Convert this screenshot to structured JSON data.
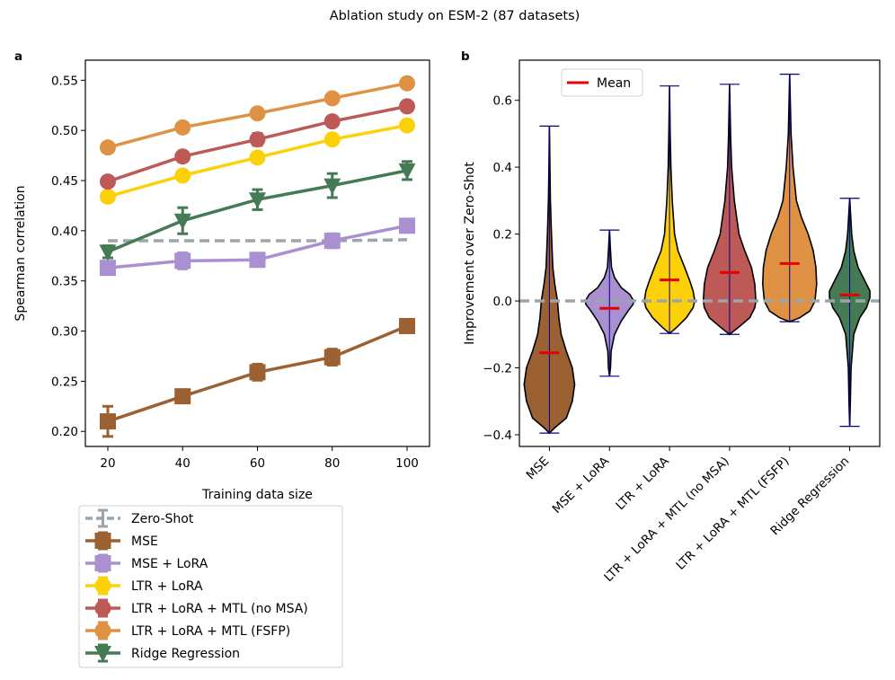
{
  "suptitle": "Ablation study on ESM-2 (87 datasets)",
  "colors": {
    "Zero-Shot": "#9aa5ae",
    "MSE": "#9b6133",
    "MSE + LoRA": "#aa90d0",
    "LTR + LoRA": "#fdd10a",
    "LTR + LoRA + MTL (no MSA)": "#bd5a57",
    "LTR + LoRA + MTL (FSFP)": "#df9244",
    "Ridge Regression": "#447b55",
    "mean": "#e60000",
    "violin_line": "#00008b"
  },
  "chart_data": [
    {
      "panel": "a",
      "type": "line",
      "xlabel": "Training data size",
      "ylabel": "Spearman correlation",
      "x": [
        20,
        40,
        60,
        80,
        100
      ],
      "xlim": [
        14,
        106
      ],
      "ylim": [
        0.185,
        0.57
      ],
      "xticks": [
        20,
        40,
        60,
        80,
        100
      ],
      "yticks": [
        0.2,
        0.25,
        0.3,
        0.35,
        0.4,
        0.45,
        0.5,
        0.55
      ],
      "ytick_labels": [
        "0.20",
        "0.25",
        "0.30",
        "0.35",
        "0.40",
        "0.45",
        "0.50",
        "0.55"
      ],
      "legend_location": "below",
      "series": [
        {
          "name": "Zero-Shot",
          "marker": "none",
          "dashed": true,
          "values": [
            0.39,
            0.39,
            0.39,
            0.39,
            0.391
          ],
          "err": [
            0,
            0,
            0,
            0,
            0
          ]
        },
        {
          "name": "MSE",
          "marker": "square",
          "values": [
            0.21,
            0.235,
            0.259,
            0.274,
            0.305
          ],
          "err": [
            0.015,
            0.005,
            0.008,
            0.008,
            0.005
          ]
        },
        {
          "name": "MSE + LoRA",
          "marker": "square",
          "values": [
            0.363,
            0.37,
            0.371,
            0.39,
            0.405
          ],
          "err": [
            0.006,
            0.008,
            0.006,
            0.007,
            0.006
          ]
        },
        {
          "name": "LTR + LoRA",
          "marker": "circle",
          "values": [
            0.434,
            0.455,
            0.473,
            0.491,
            0.505
          ],
          "err": [
            0.004,
            0.004,
            0.004,
            0.003,
            0.003
          ]
        },
        {
          "name": "LTR + LoRA + MTL (no MSA)",
          "marker": "circle",
          "values": [
            0.449,
            0.474,
            0.491,
            0.509,
            0.524
          ],
          "err": [
            0.004,
            0.004,
            0.006,
            0.004,
            0.003
          ]
        },
        {
          "name": "LTR + LoRA + MTL (FSFP)",
          "marker": "circle",
          "values": [
            0.483,
            0.503,
            0.517,
            0.532,
            0.547
          ],
          "err": [
            0.003,
            0.004,
            0.003,
            0.003,
            0.003
          ]
        },
        {
          "name": "Ridge Regression",
          "marker": "triangle-down",
          "values": [
            0.379,
            0.41,
            0.431,
            0.445,
            0.46
          ],
          "err": [
            0.006,
            0.013,
            0.01,
            0.012,
            0.009
          ]
        }
      ]
    },
    {
      "panel": "b",
      "type": "violin",
      "ylabel": "Improvement over Zero-Shot",
      "ylim": [
        -0.435,
        0.72
      ],
      "yticks": [
        -0.4,
        -0.2,
        0.0,
        0.2,
        0.4,
        0.6
      ],
      "ytick_labels": [
        "−0.4",
        "−0.2",
        "0.0",
        "0.2",
        "0.4",
        "0.6"
      ],
      "zero_line": 0.0,
      "legend_entry": "Mean",
      "legend_location": "top-left",
      "violins": [
        {
          "name": "MSE",
          "min": -0.395,
          "max": 0.523,
          "mean": -0.155,
          "profile": [
            [
              -0.395,
              0.0
            ],
            [
              -0.38,
              0.015
            ],
            [
              -0.35,
              0.05
            ],
            [
              -0.3,
              0.068
            ],
            [
              -0.25,
              0.075
            ],
            [
              -0.2,
              0.068
            ],
            [
              -0.15,
              0.05
            ],
            [
              -0.1,
              0.035
            ],
            [
              -0.05,
              0.028
            ],
            [
              0.0,
              0.024
            ],
            [
              0.05,
              0.016
            ],
            [
              0.1,
              0.01
            ],
            [
              0.2,
              0.006
            ],
            [
              0.3,
              0.003
            ],
            [
              0.4,
              0.0015
            ],
            [
              0.523,
              0.0
            ]
          ]
        },
        {
          "name": "MSE + LoRA",
          "min": -0.225,
          "max": 0.212,
          "mean": -0.022,
          "profile": [
            [
              -0.225,
              0.0
            ],
            [
              -0.2,
              0.003
            ],
            [
              -0.15,
              0.005
            ],
            [
              -0.1,
              0.015
            ],
            [
              -0.06,
              0.035
            ],
            [
              -0.03,
              0.055
            ],
            [
              -0.01,
              0.07
            ],
            [
              0.0,
              0.072
            ],
            [
              0.02,
              0.06
            ],
            [
              0.04,
              0.035
            ],
            [
              0.07,
              0.015
            ],
            [
              0.1,
              0.006
            ],
            [
              0.15,
              0.003
            ],
            [
              0.212,
              0.0
            ]
          ]
        },
        {
          "name": "LTR + LoRA",
          "min": -0.097,
          "max": 0.643,
          "mean": 0.063,
          "profile": [
            [
              -0.097,
              0.0
            ],
            [
              -0.08,
              0.02
            ],
            [
              -0.05,
              0.05
            ],
            [
              -0.02,
              0.07
            ],
            [
              0.0,
              0.075
            ],
            [
              0.03,
              0.07
            ],
            [
              0.06,
              0.06
            ],
            [
              0.1,
              0.045
            ],
            [
              0.15,
              0.025
            ],
            [
              0.2,
              0.015
            ],
            [
              0.3,
              0.008
            ],
            [
              0.4,
              0.004
            ],
            [
              0.5,
              0.002
            ],
            [
              0.643,
              0.0
            ]
          ]
        },
        {
          "name": "LTR + LoRA + MTL (no MSA)",
          "min": -0.1,
          "max": 0.648,
          "mean": 0.085,
          "profile": [
            [
              -0.1,
              0.0
            ],
            [
              -0.08,
              0.025
            ],
            [
              -0.05,
              0.06
            ],
            [
              -0.02,
              0.075
            ],
            [
              0.0,
              0.078
            ],
            [
              0.05,
              0.075
            ],
            [
              0.1,
              0.065
            ],
            [
              0.15,
              0.045
            ],
            [
              0.2,
              0.028
            ],
            [
              0.3,
              0.014
            ],
            [
              0.4,
              0.006
            ],
            [
              0.5,
              0.003
            ],
            [
              0.648,
              0.0
            ]
          ]
        },
        {
          "name": "LTR + LoRA + MTL (FSFP)",
          "min": -0.062,
          "max": 0.678,
          "mean": 0.112,
          "profile": [
            [
              -0.062,
              0.0
            ],
            [
              -0.05,
              0.03
            ],
            [
              -0.03,
              0.06
            ],
            [
              0.0,
              0.075
            ],
            [
              0.05,
              0.08
            ],
            [
              0.1,
              0.078
            ],
            [
              0.15,
              0.07
            ],
            [
              0.2,
              0.055
            ],
            [
              0.25,
              0.035
            ],
            [
              0.3,
              0.02
            ],
            [
              0.4,
              0.01
            ],
            [
              0.5,
              0.004
            ],
            [
              0.678,
              0.0
            ]
          ]
        },
        {
          "name": "Ridge Regression",
          "min": -0.375,
          "max": 0.307,
          "mean": 0.018,
          "profile": [
            [
              -0.375,
              0.0
            ],
            [
              -0.3,
              0.002
            ],
            [
              -0.2,
              0.004
            ],
            [
              -0.1,
              0.012
            ],
            [
              -0.05,
              0.03
            ],
            [
              -0.02,
              0.05
            ],
            [
              0.01,
              0.06
            ],
            [
              0.03,
              0.06
            ],
            [
              0.06,
              0.045
            ],
            [
              0.1,
              0.025
            ],
            [
              0.15,
              0.012
            ],
            [
              0.2,
              0.006
            ],
            [
              0.307,
              0.0
            ]
          ]
        }
      ]
    }
  ]
}
